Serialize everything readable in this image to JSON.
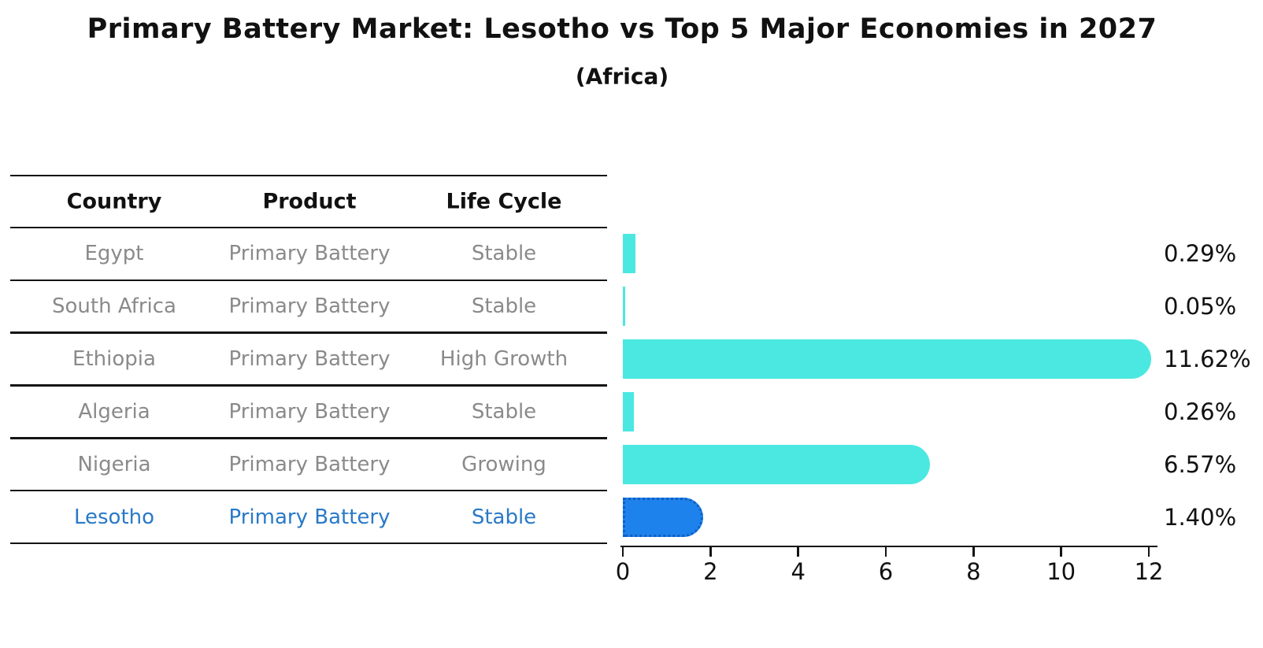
{
  "title": "Primary Battery Market: Lesotho vs Top 5 Major Economies in 2027",
  "subtitle": "(Africa)",
  "table": {
    "headers": [
      "Country",
      "Product",
      "Life Cycle"
    ],
    "rows": [
      {
        "country": "Egypt",
        "product": "Primary Battery",
        "life_cycle": "Stable",
        "highlight": false
      },
      {
        "country": "South Africa",
        "product": "Primary Battery",
        "life_cycle": "Stable",
        "highlight": false
      },
      {
        "country": "Ethiopia",
        "product": "Primary Battery",
        "life_cycle": "High Growth",
        "highlight": false
      },
      {
        "country": "Algeria",
        "product": "Primary Battery",
        "life_cycle": "Stable",
        "highlight": false
      },
      {
        "country": "Nigeria",
        "product": "Primary Battery",
        "life_cycle": "Growing",
        "highlight": false
      },
      {
        "country": "Lesotho",
        "product": "Primary Battery",
        "life_cycle": "Stable",
        "highlight": true
      }
    ]
  },
  "chart_data": {
    "type": "bar",
    "orientation": "horizontal",
    "title": "Primary Battery Market: Lesotho vs Top 5 Major Economies in 2027",
    "subtitle": "(Africa)",
    "categories": [
      "Egypt",
      "South Africa",
      "Ethiopia",
      "Algeria",
      "Nigeria",
      "Lesotho"
    ],
    "values": [
      0.29,
      0.05,
      11.62,
      0.26,
      6.57,
      1.4
    ],
    "value_labels": [
      "0.29%",
      "0.05%",
      "11.62%",
      "0.26%",
      "6.57%",
      "1.40%"
    ],
    "xlim": [
      0,
      12
    ],
    "xticks": [
      "0",
      "2",
      "4",
      "6",
      "8",
      "10",
      "12"
    ],
    "grid": false,
    "legend": "none",
    "highlight_index": 5
  },
  "colors": {
    "bar": "#4AE8E0",
    "highlight_bar": "#1E82EC",
    "highlight_border": "#0F5FC4",
    "highlight_text": "#2979C8",
    "cell_text": "#8A8A8A",
    "header_text": "#111111",
    "axis": "#141414"
  }
}
